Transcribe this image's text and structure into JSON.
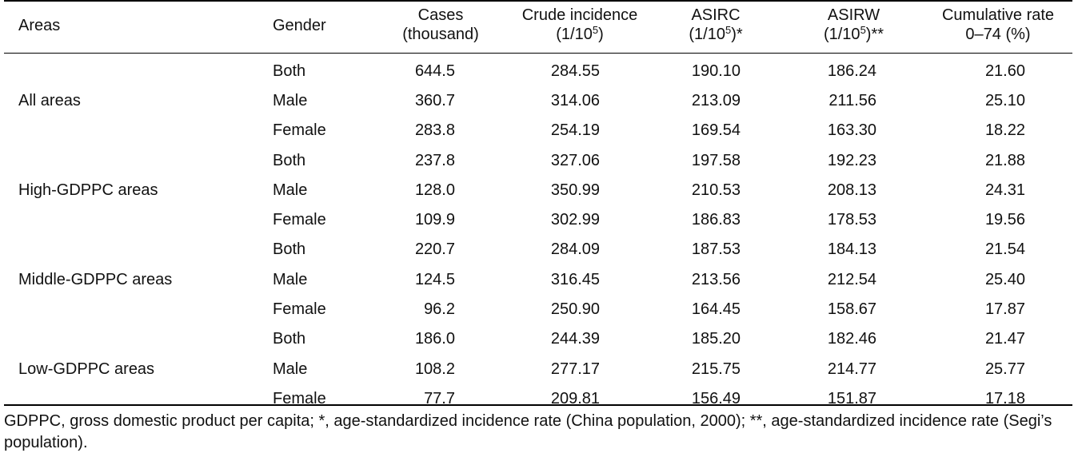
{
  "table": {
    "headers": {
      "areas": "Areas",
      "gender": "Gender",
      "cases_1": "Cases",
      "cases_2": "(thousand)",
      "crude_1": "Crude incidence",
      "crude_2_pre": "(1/10",
      "crude_2_sup": "5",
      "crude_2_post": ")",
      "asirc_1": "ASIRC",
      "asirc_2_pre": "(1/10",
      "asirc_2_sup": "5",
      "asirc_2_post": ")*",
      "asirw_1": "ASIRW",
      "asirw_2_pre": "(1/10",
      "asirw_2_sup": "5",
      "asirw_2_post": ")**",
      "cum_1": "Cumulative rate",
      "cum_2": "0–74 (%)"
    },
    "groups": [
      {
        "area": "All areas",
        "rows": [
          {
            "gender": "Both",
            "cases": "644.5",
            "crude": "284.55",
            "asirc": "190.10",
            "asirw": "186.24",
            "cum": "21.60"
          },
          {
            "gender": "Male",
            "cases": "360.7",
            "crude": "314.06",
            "asirc": "213.09",
            "asirw": "211.56",
            "cum": "25.10"
          },
          {
            "gender": "Female",
            "cases": "283.8",
            "crude": "254.19",
            "asirc": "169.54",
            "asirw": "163.30",
            "cum": "18.22"
          }
        ]
      },
      {
        "area": "High-GDPPC areas",
        "rows": [
          {
            "gender": "Both",
            "cases": "237.8",
            "crude": "327.06",
            "asirc": "197.58",
            "asirw": "192.23",
            "cum": "21.88"
          },
          {
            "gender": "Male",
            "cases": "128.0",
            "crude": "350.99",
            "asirc": "210.53",
            "asirw": "208.13",
            "cum": "24.31"
          },
          {
            "gender": "Female",
            "cases": "109.9",
            "crude": "302.99",
            "asirc": "186.83",
            "asirw": "178.53",
            "cum": "19.56"
          }
        ]
      },
      {
        "area": "Middle-GDPPC areas",
        "rows": [
          {
            "gender": "Both",
            "cases": "220.7",
            "crude": "284.09",
            "asirc": "187.53",
            "asirw": "184.13",
            "cum": "21.54"
          },
          {
            "gender": "Male",
            "cases": "124.5",
            "crude": "316.45",
            "asirc": "213.56",
            "asirw": "212.54",
            "cum": "25.40"
          },
          {
            "gender": "Female",
            "cases": "96.2",
            "crude": "250.90",
            "asirc": "164.45",
            "asirw": "158.67",
            "cum": "17.87"
          }
        ]
      },
      {
        "area": "Low-GDPPC areas",
        "rows": [
          {
            "gender": "Both",
            "cases": "186.0",
            "crude": "244.39",
            "asirc": "185.20",
            "asirw": "182.46",
            "cum": "21.47"
          },
          {
            "gender": "Male",
            "cases": "108.2",
            "crude": "277.17",
            "asirc": "215.75",
            "asirw": "214.77",
            "cum": "25.77"
          },
          {
            "gender": "Female",
            "cases": "77.7",
            "crude": "209.81",
            "asirc": "156.49",
            "asirw": "151.87",
            "cum": "17.18"
          }
        ]
      }
    ]
  },
  "footnote": "GDPPC, gross domestic product per capita; *, age-standardized incidence rate (China population, 2000); **, age-standardized incidence rate (Segi’s population)."
}
